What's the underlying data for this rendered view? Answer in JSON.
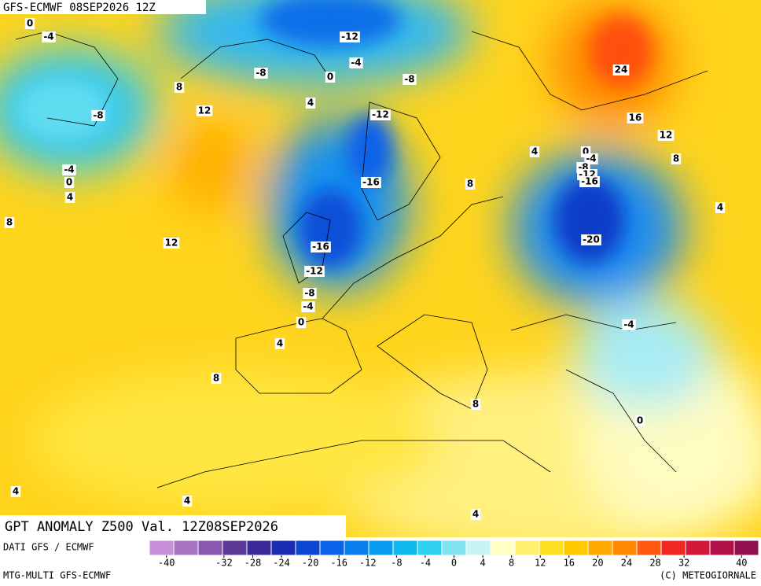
{
  "header": {
    "title": "GFS-ECMWF 08SEP2026 12Z"
  },
  "map": {
    "product": "GPT ANOMALY Z500 Val. 12Z08SEP2026",
    "contour_labels": [
      0,
      -4,
      -12,
      -4,
      -8,
      0,
      -8,
      24,
      8,
      12,
      4,
      -8,
      -12,
      16,
      12,
      4,
      0,
      -4,
      -8,
      -12,
      -16,
      8,
      -4,
      0,
      4,
      -16,
      8,
      4,
      8,
      -20,
      12,
      -16,
      -12,
      -8,
      -4,
      0,
      -4,
      4,
      8,
      8,
      0,
      4,
      4,
      4
    ]
  },
  "legend": {
    "ticks": [
      -40,
      -32,
      -28,
      -24,
      -20,
      -16,
      -12,
      -8,
      -4,
      0,
      4,
      8,
      12,
      16,
      20,
      24,
      28,
      32,
      40
    ],
    "colors": [
      "#c890d8",
      "#a874c4",
      "#8a58b0",
      "#5e3a98",
      "#3a2a9a",
      "#1c2cb0",
      "#0a46d0",
      "#0a62e8",
      "#0a80f0",
      "#0a9cf0",
      "#10b8f0",
      "#30d0f0",
      "#80e4f0",
      "#c8f4f4",
      "#ffffc8",
      "#fff070",
      "#ffe020",
      "#ffc800",
      "#ffa800",
      "#ff8800",
      "#ff5a10",
      "#f02a20",
      "#d01838",
      "#b01048",
      "#901050"
    ]
  },
  "footer": {
    "source": "DATI GFS / ECMWF",
    "model": "MTG-MULTI GFS-ECMWF",
    "credit": "(C) METEOGIORNALE"
  }
}
